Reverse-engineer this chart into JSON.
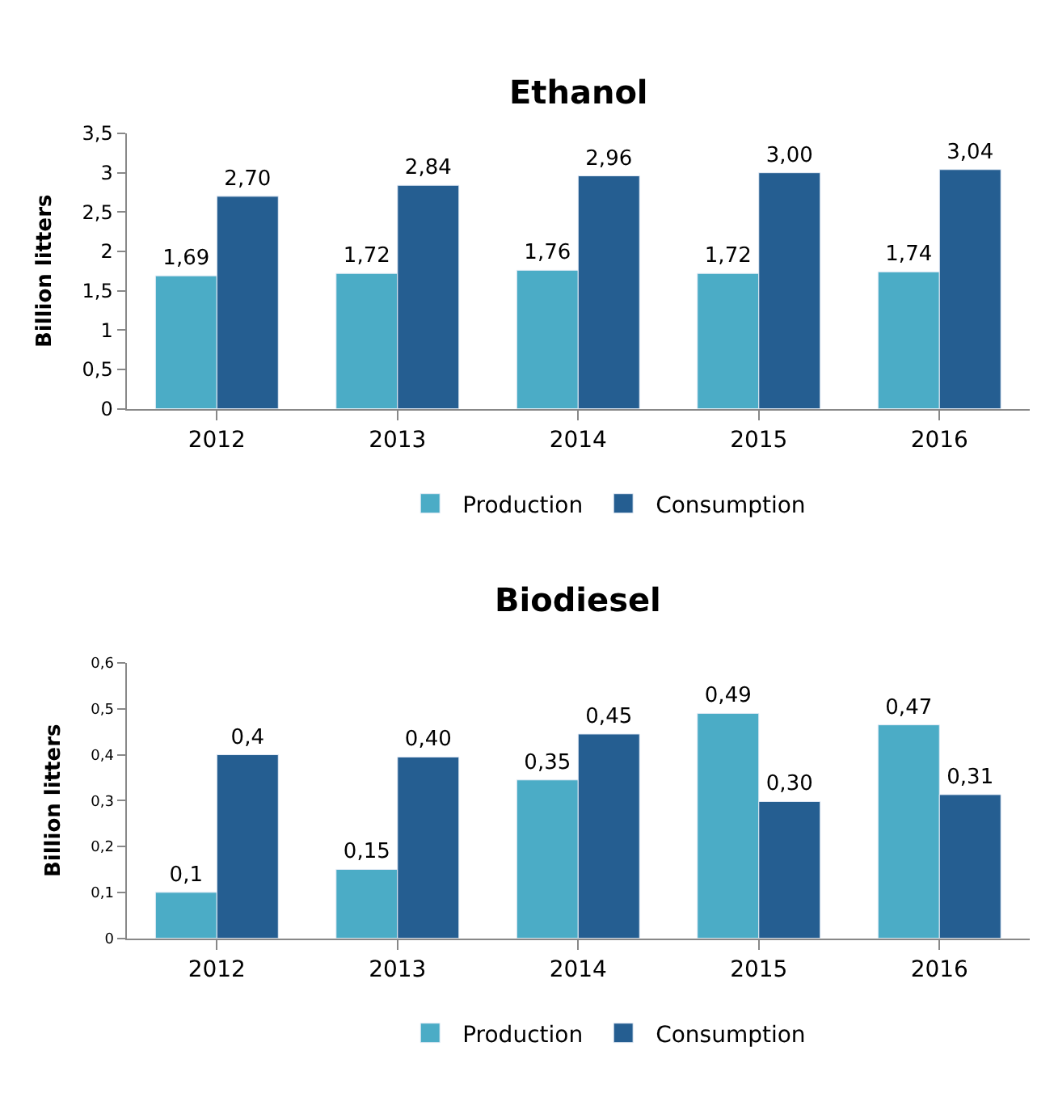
{
  "chart_data": [
    {
      "type": "bar",
      "title": "Ethanol",
      "ylabel": "Billion litters",
      "categories": [
        "2012",
        "2013",
        "2014",
        "2015",
        "2016"
      ],
      "series": [
        {
          "name": "Production",
          "color": "#4bacc6",
          "values": [
            1.69,
            1.72,
            1.76,
            1.72,
            1.74
          ],
          "value_labels": [
            "1,69",
            "1,72",
            "1,76",
            "1,72",
            "1,74"
          ]
        },
        {
          "name": "Consumption",
          "color": "#255e91",
          "values": [
            2.7,
            2.84,
            2.96,
            3.0,
            3.04
          ],
          "value_labels": [
            "2,70",
            "2,84",
            "2,96",
            "3,00",
            "3,04"
          ]
        }
      ],
      "ylim": [
        0,
        3.5
      ],
      "yticks": [
        0,
        {
          "value": 0.5,
          "label": "0,5"
        },
        1,
        {
          "value": 1.5,
          "label": "1,5"
        },
        2,
        {
          "value": 2.5,
          "label": "2,5"
        },
        3,
        {
          "value": 3.5,
          "label": "3,5"
        }
      ],
      "legend": "bottom"
    },
    {
      "type": "bar",
      "title": "Biodiesel",
      "ylabel": "Billion litters",
      "categories": [
        "2012",
        "2013",
        "2014",
        "2015",
        "2016"
      ],
      "series": [
        {
          "name": "Production",
          "color": "#4bacc6",
          "values": [
            0.1,
            0.15,
            0.345,
            0.49,
            0.465
          ],
          "value_labels": [
            "0,1",
            "0,15",
            "0,35",
            "0,49",
            "0,47"
          ]
        },
        {
          "name": "Consumption",
          "color": "#255e91",
          "values": [
            0.4,
            0.395,
            0.445,
            0.298,
            0.313
          ],
          "value_labels": [
            "0,4",
            "0,40",
            "0,45",
            "0,30",
            "0,31"
          ]
        }
      ],
      "ylim": [
        0,
        0.6
      ],
      "yticks": [
        0,
        {
          "value": 0.1,
          "label": "0,1"
        },
        {
          "value": 0.2,
          "label": "0,2"
        },
        {
          "value": 0.3,
          "label": "0,3"
        },
        {
          "value": 0.4,
          "label": "0,4"
        },
        {
          "value": 0.5,
          "label": "0,5"
        },
        {
          "value": 0.6,
          "label": "0,6"
        }
      ],
      "legend": "bottom"
    }
  ]
}
